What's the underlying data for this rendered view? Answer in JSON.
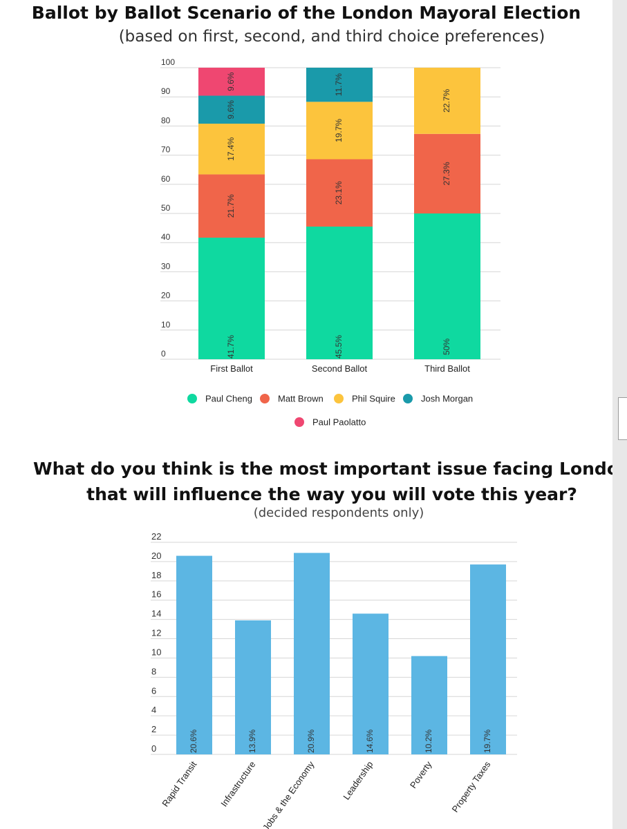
{
  "colors": {
    "paul_cheng": "#0fd9a0",
    "matt_brown": "#f0654a",
    "phil_squire": "#fcc43d",
    "josh_morgan": "#1a9aaa",
    "paul_paolatto": "#ef4771",
    "issue_bar": "#5cb6e3"
  },
  "chart_data": [
    {
      "type": "bar",
      "stacked": true,
      "title": "Ballot by Ballot Scenario of the London Mayoral Election",
      "subtitle": "(based on first, second, and third choice preferences)",
      "categories": [
        "First Ballot",
        "Second Ballot",
        "Third Ballot"
      ],
      "series": [
        {
          "name": "Paul Cheng",
          "values": [
            41.7,
            45.5,
            50
          ],
          "labels": [
            "41.7%",
            "45.5%",
            "50%"
          ]
        },
        {
          "name": "Matt Brown",
          "values": [
            21.7,
            23.1,
            27.3
          ],
          "labels": [
            "21.7%",
            "23.1%",
            "27.3%"
          ]
        },
        {
          "name": "Phil Squire",
          "values": [
            17.4,
            19.7,
            22.7
          ],
          "labels": [
            "17.4%",
            "19.7%",
            "22.7%"
          ]
        },
        {
          "name": "Josh Morgan",
          "values": [
            9.6,
            11.7,
            0
          ],
          "labels": [
            "9.6%",
            "11.7%",
            ""
          ]
        },
        {
          "name": "Paul Paolatto",
          "values": [
            9.6,
            0,
            0
          ],
          "labels": [
            "9.6%",
            "",
            ""
          ]
        }
      ],
      "yticks": [
        "0",
        "10",
        "20",
        "30",
        "40",
        "50",
        "60",
        "70",
        "80",
        "90",
        "100"
      ],
      "ylim": [
        0,
        100
      ],
      "grid": true,
      "legend": "bottom"
    },
    {
      "type": "bar",
      "title_line1": "What do you think is the most important issue facing London",
      "title_line2": "that will influence the way you will vote this year?",
      "subtitle": "(decided respondents only)",
      "categories": [
        "Rapid Transit",
        "Infrastructure",
        "Jobs & the Economy",
        "Leadership",
        "Poverty",
        "Property Taxes"
      ],
      "values": [
        20.6,
        13.9,
        20.9,
        14.6,
        10.2,
        19.7
      ],
      "labels": [
        "20.6%",
        "13.9%",
        "20.9%",
        "14.6%",
        "10.2%",
        "19.7%"
      ],
      "yticks": [
        "0",
        "2",
        "4",
        "6",
        "8",
        "10",
        "12",
        "14",
        "16",
        "18",
        "20",
        "22"
      ],
      "ylim": [
        0,
        22
      ],
      "grid": true
    }
  ]
}
